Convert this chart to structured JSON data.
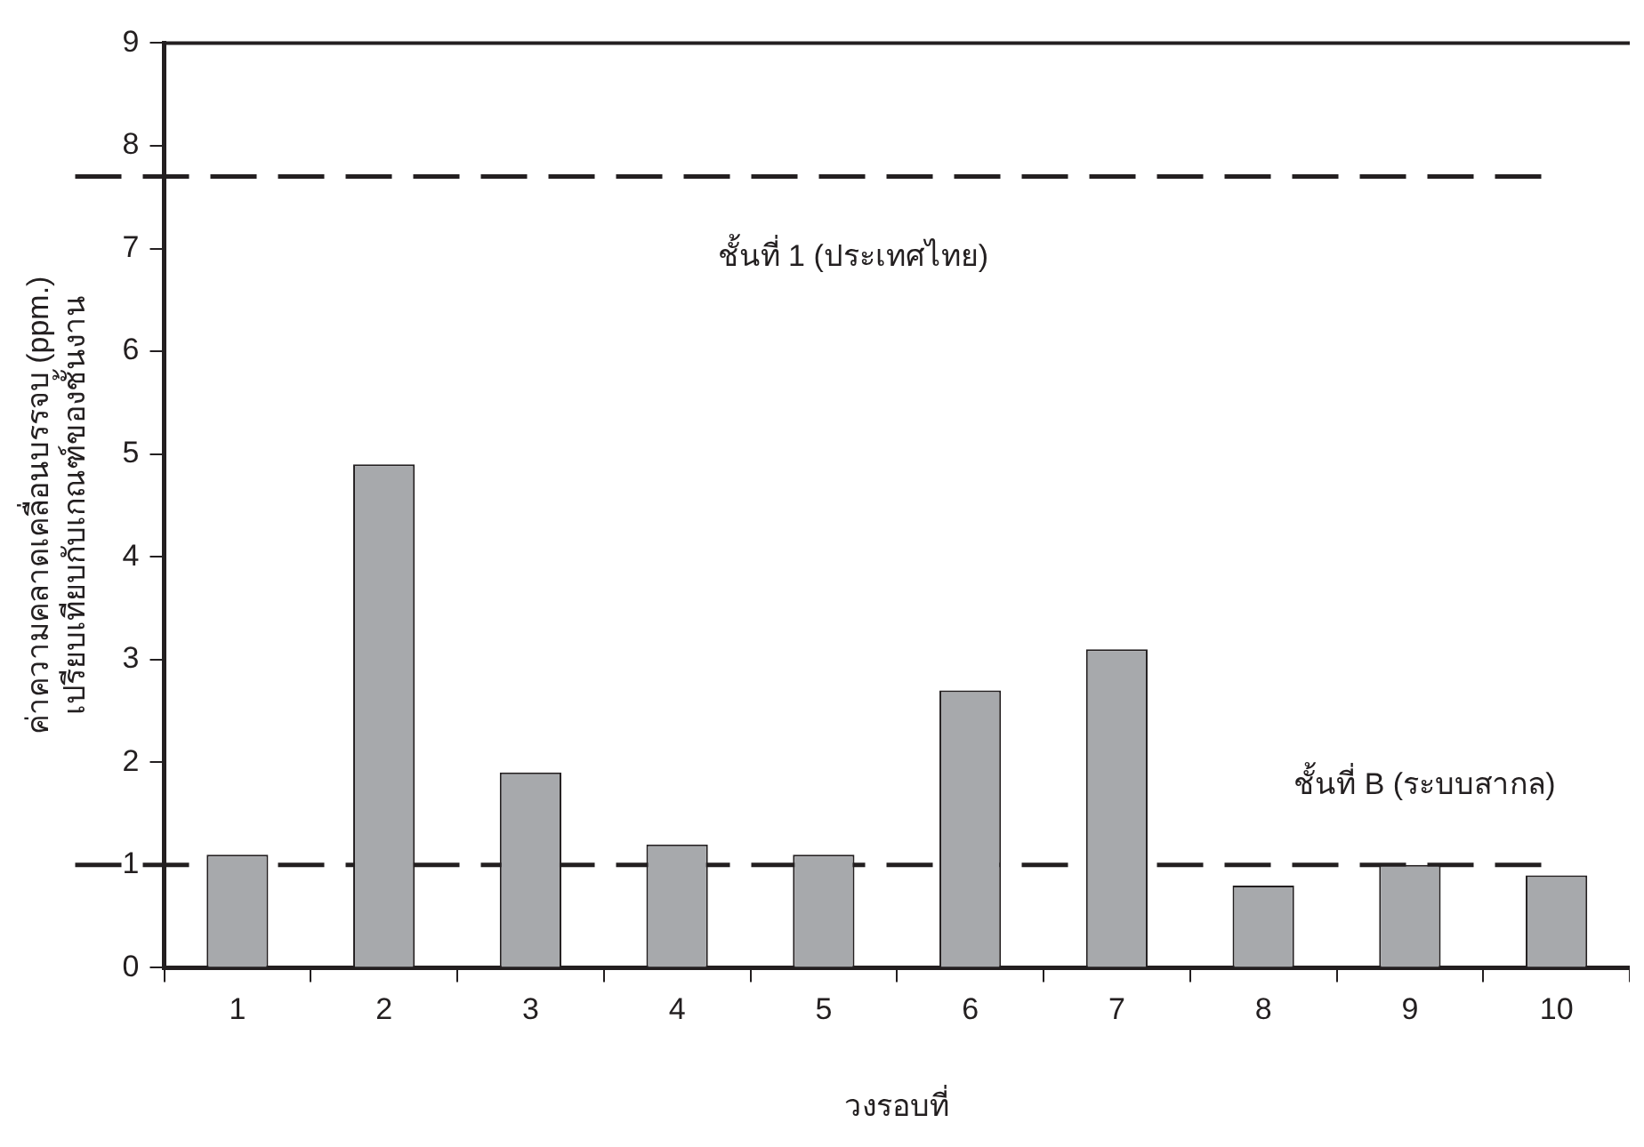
{
  "chart_data": {
    "type": "bar",
    "xlabel": "วงรอบที่",
    "ylabel": "ค่าความคลาดเคลื่อนบรรจบ (ppm.)\nเปรียบเทียบกับเกณฑ์ของชั้นงาน",
    "categories": [
      "1",
      "2",
      "3",
      "4",
      "5",
      "6",
      "7",
      "8",
      "9",
      "10"
    ],
    "values": [
      1.1,
      4.9,
      1.9,
      1.2,
      1.1,
      2.7,
      3.1,
      0.8,
      1.0,
      0.9
    ],
    "color": "#a7a9ac",
    "ylim": [
      0,
      9
    ],
    "yticks": [
      0,
      1,
      2,
      3,
      4,
      5,
      6,
      7,
      8,
      9
    ],
    "grid": false,
    "legend": false,
    "ref_lines": [
      {
        "axis": "y",
        "value": 7.7,
        "label": "ชั้นที่ 1 (ประเทศไทย)",
        "line_style": "dashed",
        "color": "#231f20"
      },
      {
        "axis": "y",
        "value": 1,
        "label": "ชั้นที่ B (ระบบสากล)",
        "line_style": "dashed",
        "color": "#231f20"
      }
    ]
  }
}
